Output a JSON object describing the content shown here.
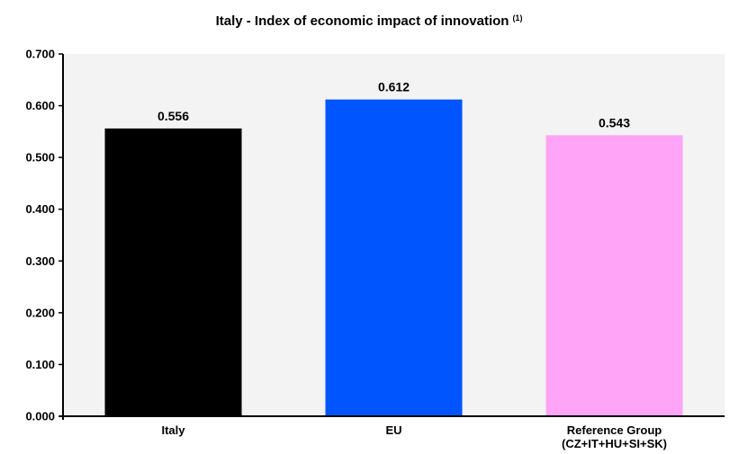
{
  "chart_data": {
    "type": "bar",
    "title": "Italy - Index of economic impact of innovation",
    "title_superscript": "(1)",
    "categories": [
      [
        "Italy"
      ],
      [
        "EU"
      ],
      [
        "Reference Group",
        "(CZ+IT+HU+SI+SK)"
      ]
    ],
    "values": [
      0.556,
      0.612,
      0.543
    ],
    "value_labels": [
      "0.556",
      "0.612",
      "0.543"
    ],
    "colors": [
      "#000000",
      "#0055ff",
      "#ffa4f6"
    ],
    "ylim": [
      0,
      0.7
    ],
    "yticks": [
      "0.000",
      "0.100",
      "0.200",
      "0.300",
      "0.400",
      "0.500",
      "0.600",
      "0.700"
    ],
    "xlabel": "",
    "ylabel": "",
    "grid": false,
    "plot_background": "#f3f3f3"
  }
}
